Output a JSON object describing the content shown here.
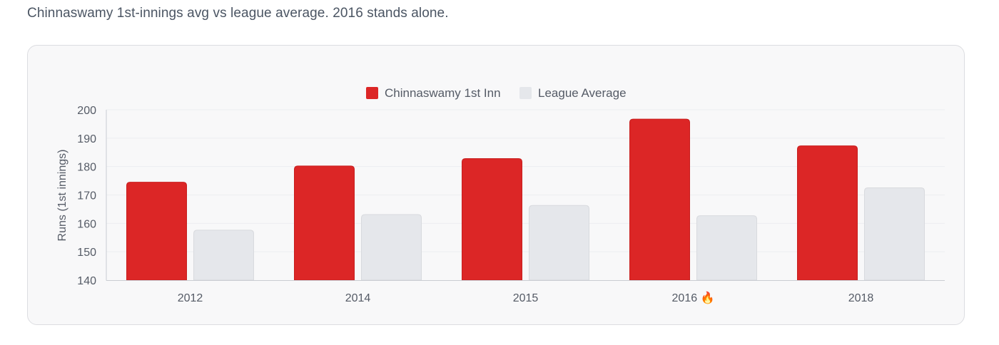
{
  "caption": "Chinnaswamy 1st-innings avg vs league average. 2016 stands alone.",
  "chart_data": {
    "type": "bar",
    "categories": [
      "2012",
      "2014",
      "2015",
      "2016 🔥",
      "2018"
    ],
    "series": [
      {
        "name": "Chinnaswamy 1st Inn",
        "values": [
          174.5,
          180.2,
          182.8,
          196.7,
          187.3
        ],
        "color": "#dc2626",
        "border": "#c81e1e"
      },
      {
        "name": "League Average",
        "values": [
          157.6,
          163.1,
          166.3,
          162.7,
          172.5
        ],
        "color": "#e5e7eb",
        "border": "#d8dade"
      }
    ],
    "title": "",
    "xlabel": "",
    "ylabel": "Runs (1st innings)",
    "ylim": [
      140,
      200
    ],
    "yticks": [
      140,
      150,
      160,
      170,
      180,
      190,
      200
    ],
    "grid": true,
    "legend": "top-center"
  }
}
